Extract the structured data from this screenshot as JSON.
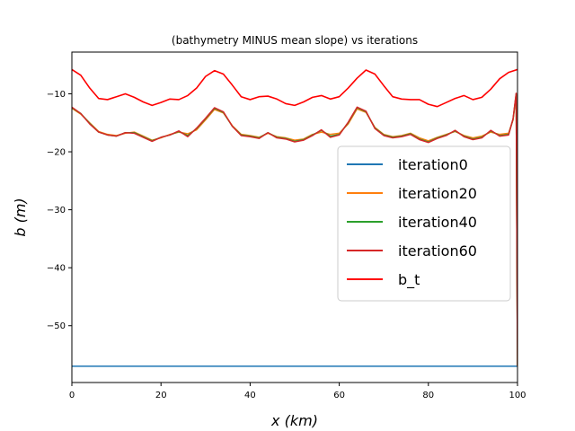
{
  "chart_data": {
    "type": "line",
    "title": "(bathymetry MINUS mean slope) vs iterations",
    "xlabel": "x (km)",
    "ylabel": "b (m)",
    "xlim": [
      0,
      100
    ],
    "ylim": [
      -59.8,
      -2.8
    ],
    "xticks": [
      0,
      20,
      40,
      60,
      80,
      100
    ],
    "yticks": [
      -10,
      -20,
      -30,
      -40,
      -50
    ],
    "grid": false,
    "legend_position": "center-right",
    "series": [
      {
        "name": "iteration0",
        "color": "#1f77b4",
        "x": [
          0,
          100
        ],
        "y": [
          -57.0,
          -57.0
        ]
      },
      {
        "name": "iteration20",
        "color": "#ff7f0e",
        "x": [
          0,
          2,
          4,
          6,
          8,
          10,
          12,
          14,
          16,
          18,
          20,
          22,
          24,
          26,
          28,
          30,
          32,
          34,
          36,
          38,
          40,
          42,
          44,
          46,
          48,
          50,
          52,
          54,
          56,
          58,
          60,
          62,
          64,
          66,
          68,
          70,
          72,
          74,
          76,
          78,
          80,
          82,
          84,
          86,
          88,
          90,
          92,
          94,
          96,
          98,
          99,
          99.7,
          100
        ],
        "y": [
          -12.5,
          -13.5,
          -15.0,
          -16.5,
          -17.0,
          -17.2,
          -16.8,
          -16.6,
          -17.3,
          -18.0,
          -17.6,
          -17.0,
          -16.6,
          -16.9,
          -16.2,
          -14.5,
          -12.7,
          -13.3,
          -15.5,
          -17.0,
          -17.2,
          -17.5,
          -16.8,
          -17.4,
          -17.6,
          -18.0,
          -17.8,
          -17.0,
          -16.6,
          -17.0,
          -16.8,
          -15.2,
          -12.6,
          -13.2,
          -15.8,
          -17.0,
          -17.4,
          -17.2,
          -16.8,
          -17.6,
          -18.1,
          -17.5,
          -17.0,
          -16.5,
          -17.2,
          -17.6,
          -17.3,
          -16.6,
          -17.0,
          -16.8,
          -14.5,
          -10.2,
          -57.0
        ]
      },
      {
        "name": "iteration40",
        "color": "#2ca02c",
        "x": [
          0,
          2,
          4,
          6,
          8,
          10,
          12,
          14,
          16,
          18,
          20,
          22,
          24,
          26,
          28,
          30,
          32,
          34,
          36,
          38,
          40,
          42,
          44,
          46,
          48,
          50,
          52,
          54,
          56,
          58,
          60,
          62,
          64,
          66,
          68,
          70,
          72,
          74,
          76,
          78,
          80,
          82,
          84,
          86,
          88,
          90,
          92,
          94,
          96,
          98,
          99,
          99.7,
          100
        ],
        "y": [
          -12.4,
          -13.4,
          -15.1,
          -16.6,
          -17.1,
          -17.3,
          -16.7,
          -16.7,
          -17.4,
          -18.1,
          -17.5,
          -17.1,
          -16.5,
          -17.2,
          -16.0,
          -14.3,
          -12.5,
          -13.2,
          -15.6,
          -17.1,
          -17.3,
          -17.6,
          -16.7,
          -17.5,
          -17.7,
          -18.2,
          -17.9,
          -17.1,
          -16.3,
          -17.3,
          -17.0,
          -15.0,
          -12.4,
          -13.1,
          -15.9,
          -17.1,
          -17.5,
          -17.3,
          -16.9,
          -17.8,
          -18.3,
          -17.6,
          -17.1,
          -16.4,
          -17.3,
          -17.8,
          -17.5,
          -16.4,
          -17.2,
          -17.0,
          -14.4,
          -10.0,
          -57.0
        ]
      },
      {
        "name": "iteration60",
        "color": "#d62728",
        "x": [
          0,
          2,
          4,
          6,
          8,
          10,
          12,
          14,
          16,
          18,
          20,
          22,
          24,
          26,
          28,
          30,
          32,
          34,
          36,
          38,
          40,
          42,
          44,
          46,
          48,
          50,
          52,
          54,
          56,
          58,
          60,
          62,
          64,
          66,
          68,
          70,
          72,
          74,
          76,
          78,
          80,
          82,
          84,
          86,
          88,
          90,
          92,
          94,
          96,
          98,
          99,
          99.7,
          100
        ],
        "y": [
          -12.3,
          -13.4,
          -15.2,
          -16.6,
          -17.1,
          -17.3,
          -16.7,
          -16.8,
          -17.5,
          -18.2,
          -17.5,
          -17.1,
          -16.4,
          -17.4,
          -15.9,
          -14.2,
          -12.4,
          -13.1,
          -15.6,
          -17.2,
          -17.4,
          -17.7,
          -16.7,
          -17.6,
          -17.8,
          -18.3,
          -18.0,
          -17.2,
          -16.2,
          -17.5,
          -17.1,
          -14.9,
          -12.3,
          -13.0,
          -16.0,
          -17.2,
          -17.6,
          -17.4,
          -17.0,
          -17.9,
          -18.4,
          -17.7,
          -17.2,
          -16.3,
          -17.4,
          -17.9,
          -17.6,
          -16.3,
          -17.3,
          -17.1,
          -14.3,
          -9.9,
          -57.0
        ]
      },
      {
        "name": "b_t",
        "color": "#ff0000",
        "x": [
          0,
          2,
          4,
          6,
          8,
          10,
          12,
          14,
          16,
          18,
          20,
          22,
          24,
          26,
          28,
          30,
          32,
          34,
          36,
          38,
          40,
          42,
          44,
          46,
          48,
          50,
          52,
          54,
          56,
          58,
          60,
          62,
          64,
          66,
          68,
          70,
          72,
          74,
          76,
          78,
          80,
          82,
          84,
          86,
          88,
          90,
          92,
          94,
          96,
          98,
          100
        ],
        "y": [
          -5.8,
          -6.8,
          -9.0,
          -10.8,
          -11.0,
          -10.5,
          -10.0,
          -10.6,
          -11.4,
          -12.0,
          -11.5,
          -10.9,
          -11.0,
          -10.3,
          -9.0,
          -7.0,
          -6.0,
          -6.6,
          -8.5,
          -10.5,
          -11.0,
          -10.5,
          -10.4,
          -10.9,
          -11.7,
          -12.0,
          -11.4,
          -10.6,
          -10.3,
          -10.9,
          -10.5,
          -9.0,
          -7.3,
          -5.9,
          -6.6,
          -8.6,
          -10.5,
          -10.9,
          -11.0,
          -11.0,
          -11.8,
          -12.2,
          -11.5,
          -10.8,
          -10.3,
          -11.0,
          -10.6,
          -9.2,
          -7.4,
          -6.3,
          -5.8
        ]
      }
    ]
  }
}
